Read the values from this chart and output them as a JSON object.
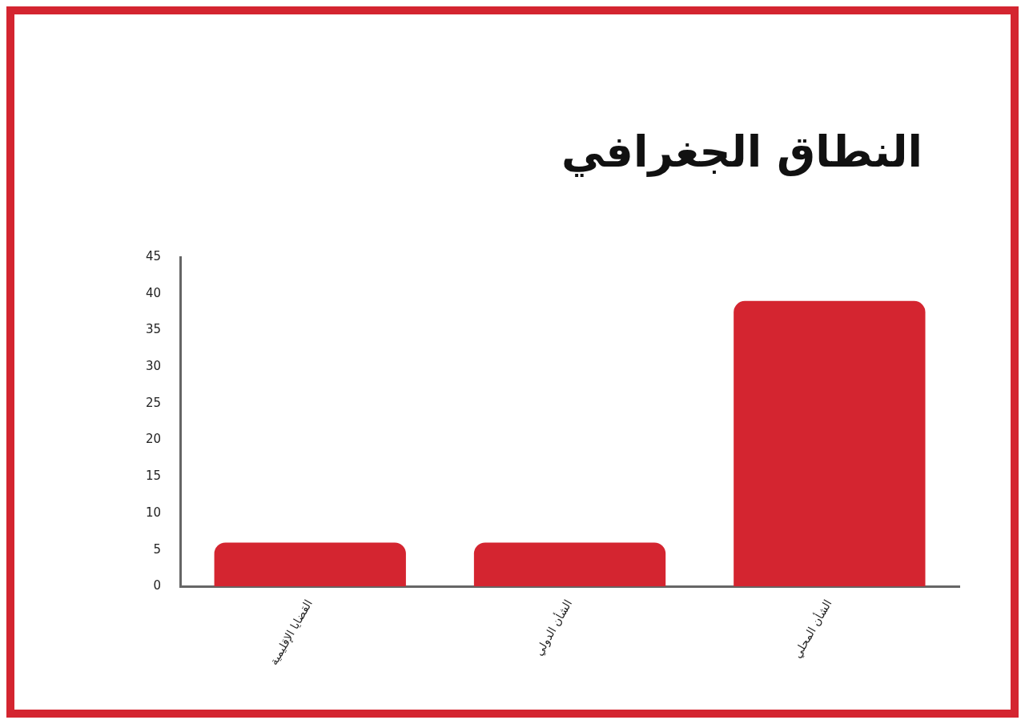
{
  "chart_data": {
    "type": "bar",
    "title": "النطاق الجغرافي",
    "categories": [
      "القضايا الإقليمية",
      "الشأن الدولي",
      "الشأن المحلي"
    ],
    "values": [
      6,
      6,
      39
    ],
    "color": "#d42530",
    "ylim": [
      0,
      45
    ],
    "yticks": [
      0,
      5,
      10,
      15,
      20,
      25,
      30,
      35,
      40,
      45
    ],
    "grid": false
  }
}
